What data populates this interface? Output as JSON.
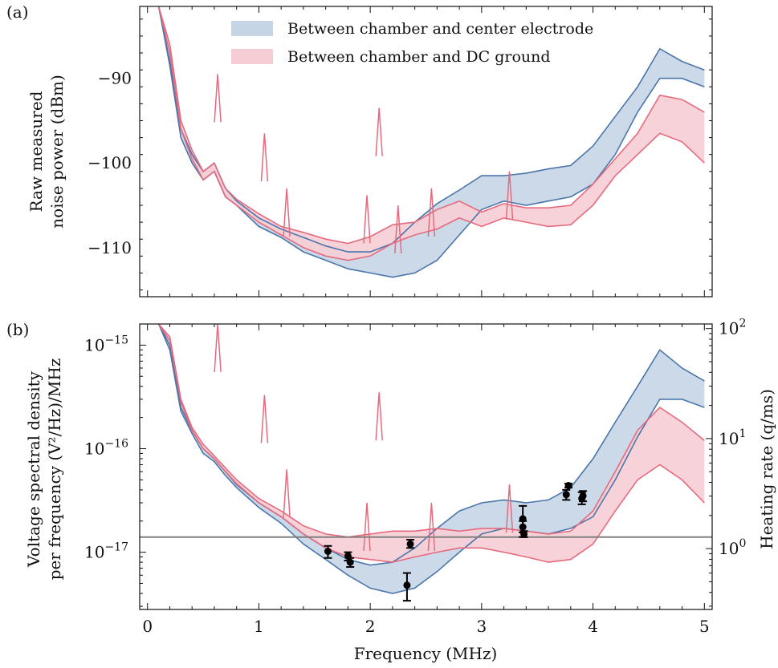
{
  "chart_data": [
    {
      "panel_label": "(a)",
      "type": "area",
      "ylabel": "Raw measured noise power (dBm)",
      "ylabel_lines": [
        "Raw measured",
        "noise power (dBm)"
      ],
      "xlim": [
        -0.07,
        5.07
      ],
      "ylim": [
        -115.8,
        -81.5
      ],
      "yticks": [
        -90,
        -100,
        -110
      ],
      "ytick_labels": [
        "−90",
        "−100",
        "−110"
      ],
      "xticks": [
        0,
        1,
        2,
        3,
        4,
        5
      ],
      "legend": {
        "placement": "top-center",
        "entries": [
          "Between chamber and center electrode",
          "Between chamber and DC ground"
        ]
      },
      "series": [
        {
          "name": "Between chamber and center electrode",
          "color": "#4a76aa",
          "fill": "#c5d5e6",
          "x": [
            0.1,
            0.2,
            0.3,
            0.4,
            0.5,
            0.6,
            0.7,
            0.8,
            1.0,
            1.2,
            1.4,
            1.6,
            1.8,
            2.0,
            2.2,
            2.4,
            2.6,
            2.8,
            3.0,
            3.2,
            3.4,
            3.6,
            3.8,
            4.0,
            4.2,
            4.4,
            4.6,
            4.8,
            5.0
          ],
          "upper": [
            -80,
            -88,
            -96,
            -99,
            -101,
            -100,
            -103,
            -104.5,
            -106.5,
            -107.8,
            -108.8,
            -109.8,
            -110.5,
            -110.5,
            -109.5,
            -107,
            -104.8,
            -103.2,
            -101.5,
            -101.5,
            -101.2,
            -100.7,
            -100.3,
            -98,
            -94.5,
            -91,
            -86.5,
            -88,
            -89
          ],
          "lower": [
            -80,
            -88.5,
            -97,
            -100,
            -102,
            -101,
            -104,
            -105,
            -107.5,
            -108.8,
            -110.5,
            -111.5,
            -112.5,
            -113,
            -113.5,
            -113,
            -111.5,
            -108.5,
            -105.5,
            -104.5,
            -105,
            -104.5,
            -104,
            -102.5,
            -99,
            -94,
            -90,
            -90,
            -91
          ]
        },
        {
          "name": "Between chamber and DC ground",
          "color": "#e56a7e",
          "fill": "#f7cdd5",
          "x": [
            0.1,
            0.2,
            0.3,
            0.4,
            0.5,
            0.6,
            0.7,
            0.8,
            1.0,
            1.2,
            1.4,
            1.6,
            1.8,
            2.0,
            2.2,
            2.4,
            2.6,
            2.8,
            3.0,
            3.2,
            3.4,
            3.6,
            3.8,
            4.0,
            4.2,
            4.4,
            4.6,
            4.8,
            5.0
          ],
          "upper": [
            -80,
            -86,
            -95,
            -98.5,
            -101,
            -100,
            -103,
            -104.3,
            -106,
            -107.5,
            -108.2,
            -109,
            -109.5,
            -108.7,
            -107.3,
            -107,
            -105.5,
            -104.5,
            -105.8,
            -104.8,
            -105.3,
            -105.3,
            -105,
            -102.5,
            -99.5,
            -96.5,
            -92,
            -92.5,
            -94
          ],
          "lower": [
            -80,
            -87,
            -96,
            -99.5,
            -102,
            -101,
            -104,
            -105,
            -107,
            -108.5,
            -110,
            -111,
            -111.5,
            -111,
            -109.5,
            -108.5,
            -107.8,
            -106.5,
            -107.5,
            -106.5,
            -107,
            -107.5,
            -107.3,
            -105,
            -101.5,
            -99,
            -96.5,
            -97.5,
            -100
          ]
        }
      ],
      "peaks": [
        {
          "x": 0.63,
          "y": -89.5
        },
        {
          "x": 1.05,
          "y": -96.5
        },
        {
          "x": 1.25,
          "y": -103
        },
        {
          "x": 1.97,
          "y": -103.8
        },
        {
          "x": 2.08,
          "y": -93.5
        },
        {
          "x": 2.25,
          "y": -105
        },
        {
          "x": 2.55,
          "y": -103
        },
        {
          "x": 3.25,
          "y": -101
        }
      ]
    },
    {
      "panel_label": "(b)",
      "type": "area",
      "xlabel": "Frequency (MHz)",
      "ylabel": "Voltage spectral density per frequency (V²/Hz)/MHz",
      "ylabel_lines": [
        "Voltage spectral density",
        "per frequency (V²/Hz)/MHz"
      ],
      "ylabel_right": "Heating rate (q/ms)",
      "yscale": "log",
      "xlim": [
        -0.07,
        5.07
      ],
      "ylim": [
        2.8e-18,
        1.6e-15
      ],
      "yticks": [
        1e-17,
        1e-16,
        1e-15
      ],
      "y2lim": [
        0.28,
        110
      ],
      "y2ticks": [
        1,
        10,
        100
      ],
      "xticks": [
        0,
        1,
        2,
        3,
        4,
        5
      ],
      "xtick_labels": [
        "0",
        "1",
        "2",
        "3",
        "4",
        "5"
      ],
      "ytick_base": "10",
      "ytick_exponents": [
        "−17",
        "−16",
        "−15"
      ],
      "y2tick_base": "10",
      "y2tick_exponents": [
        "0",
        "1",
        "2"
      ],
      "series": [
        {
          "name": "Between chamber and center electrode",
          "color": "#4a76aa",
          "fill": "#c5d5e6",
          "x": [
            0.1,
            0.2,
            0.3,
            0.4,
            0.5,
            0.6,
            0.7,
            0.8,
            1.0,
            1.2,
            1.4,
            1.6,
            1.8,
            2.0,
            2.2,
            2.4,
            2.6,
            2.8,
            3.0,
            3.2,
            3.4,
            3.6,
            3.8,
            4.0,
            4.2,
            4.4,
            4.6,
            4.8,
            5.0
          ],
          "upper": [
            5e-15,
            1e-15,
            2.5e-16,
            1.5e-16,
            1e-16,
            8e-17,
            6e-17,
            4.5e-17,
            3e-17,
            2.2e-17,
            1.5e-17,
            1.1e-17,
            8.5e-18,
            7.5e-18,
            8e-18,
            1.1e-17,
            1.7e-17,
            2.5e-17,
            3e-17,
            3.2e-17,
            3e-17,
            3.2e-17,
            4.2e-17,
            8e-17,
            1.8e-16,
            4e-16,
            9e-16,
            6e-16,
            4.5e-16
          ],
          "lower": [
            5e-15,
            9e-16,
            2.3e-16,
            1.4e-16,
            9e-17,
            7.5e-17,
            5.5e-17,
            4.2e-17,
            2.7e-17,
            1.9e-17,
            1.2e-17,
            8.5e-18,
            6e-18,
            4.5e-18,
            4e-18,
            4.5e-18,
            6.5e-18,
            1e-17,
            1.5e-17,
            1.7e-17,
            1.6e-17,
            1.5e-17,
            1.7e-17,
            2.2e-17,
            5e-17,
            1.3e-16,
            3e-16,
            3e-16,
            2.5e-16
          ]
        },
        {
          "name": "Between chamber and DC ground",
          "color": "#e56a7e",
          "fill": "#f7cdd5",
          "x": [
            0.1,
            0.2,
            0.3,
            0.4,
            0.5,
            0.6,
            0.7,
            0.8,
            1.0,
            1.2,
            1.4,
            1.6,
            1.8,
            2.0,
            2.2,
            2.4,
            2.6,
            2.8,
            3.0,
            3.2,
            3.4,
            3.6,
            3.8,
            4.0,
            4.2,
            4.4,
            4.6,
            4.8,
            5.0
          ],
          "upper": [
            5e-15,
            1.2e-15,
            3e-16,
            1.6e-16,
            1.1e-16,
            8.5e-17,
            6.5e-17,
            5e-17,
            3.3e-17,
            2.5e-17,
            1.8e-17,
            1.5e-17,
            1.4e-17,
            1.5e-17,
            1.6e-17,
            1.6e-17,
            1.7e-17,
            1.6e-17,
            1.7e-17,
            1.7e-17,
            1.6e-17,
            1.5e-17,
            1.6e-17,
            2.5e-17,
            6e-17,
            1.5e-16,
            2.5e-16,
            1.8e-16,
            1.2e-16
          ],
          "lower": [
            5e-15,
            1.1e-15,
            2.8e-16,
            1.5e-16,
            1e-16,
            8e-17,
            6e-17,
            4.6e-17,
            3e-17,
            2.2e-17,
            1.5e-17,
            1.1e-17,
            9e-18,
            8.5e-18,
            8e-18,
            9e-18,
            1e-17,
            1.1e-17,
            1.1e-17,
            1e-17,
            9e-18,
            8e-18,
            8.5e-18,
            1.2e-17,
            2.5e-17,
            5e-17,
            7e-17,
            5e-17,
            3e-17
          ]
        }
      ],
      "peaks": [
        {
          "x": 0.63,
          "y": 3e-15
        },
        {
          "x": 1.05,
          "y": 3.3e-16
        },
        {
          "x": 1.25,
          "y": 6.3e-17
        },
        {
          "x": 1.97,
          "y": 3e-17
        },
        {
          "x": 2.08,
          "y": 3.5e-16
        },
        {
          "x": 2.55,
          "y": 3e-17
        },
        {
          "x": 3.25,
          "y": 4.5e-17
        }
      ],
      "hline": {
        "y": 1.4e-17,
        "color": "#808080"
      },
      "points": {
        "color": "#000000",
        "x": [
          1.62,
          1.8,
          1.82,
          2.33,
          2.36,
          3.37,
          3.37,
          3.38,
          3.76,
          3.78,
          3.9,
          3.91
        ],
        "y": [
          1.02e-17,
          9.2e-18,
          8e-18,
          4.8e-18,
          1.2e-17,
          2.1e-17,
          1.75e-17,
          1.5e-17,
          3.6e-17,
          4.4e-17,
          3.3e-17,
          3.5e-17
        ],
        "ylow": [
          8.8e-18,
          8.3e-18,
          7.2e-18,
          3.4e-18,
          1.1e-17,
          1.4e-17,
          1.55e-17,
          1.4e-17,
          3.2e-17,
          4.2e-17,
          2.9e-17,
          3.1e-17
        ],
        "yhigh": [
          1.15e-17,
          1e-17,
          8.8e-18,
          6.3e-18,
          1.32e-17,
          2.8e-17,
          2e-17,
          1.6e-17,
          4e-17,
          4.6e-17,
          3.8e-17,
          3.9e-17
        ]
      }
    }
  ]
}
